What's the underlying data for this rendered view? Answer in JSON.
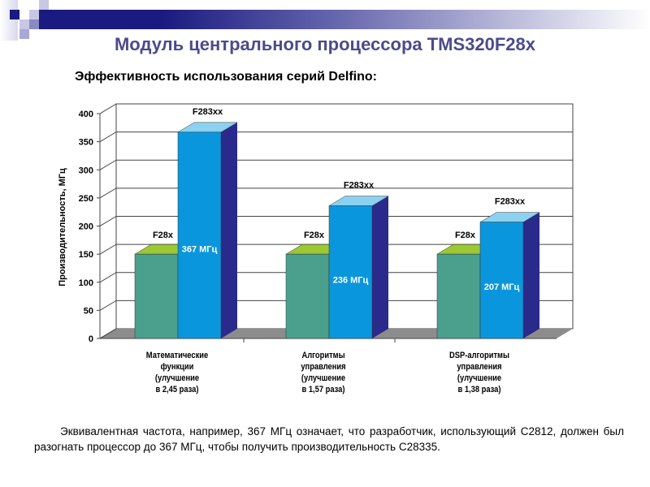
{
  "title": "Модуль центрального процессора TMS320F28x",
  "subtitle": "Эффективность использования серий Delfino:",
  "note": "Эквивалентная  частота, например, 367 МГц означает, что разработчик, использующий С2812, должен был разогнать процессор до 367 МГц, чтобы получить производительность С28335.",
  "colors": {
    "f28x": "#4aa08c",
    "f28x_top": "#9cc832",
    "f283xx": "#0a96dc",
    "f283xx_top": "#8cd2f0",
    "f283xx_side": "#2a2a8c",
    "floor": "#8c8c8c"
  },
  "chart_data": {
    "type": "bar",
    "ylabel": "Производительность, МГц",
    "ylim": [
      0,
      400
    ],
    "yticks": [
      0,
      50,
      100,
      150,
      200,
      250,
      300,
      350,
      400
    ],
    "categories": [
      [
        "Математические",
        "функции",
        "(улучшение",
        "в 2,45 раза)"
      ],
      [
        "Алгоритмы",
        "управления",
        "(улучшение",
        "в 1,57 раза)"
      ],
      [
        "DSP-алгоритмы",
        "управления",
        "(улучшение",
        "в 1,38 раза)"
      ]
    ],
    "series": [
      {
        "name": "F28x",
        "values": [
          150,
          150,
          150
        ]
      },
      {
        "name": "F283xx",
        "values": [
          367,
          236,
          207
        ],
        "labels": [
          "367 МГц",
          "236 МГц",
          "207 МГц"
        ]
      }
    ]
  }
}
